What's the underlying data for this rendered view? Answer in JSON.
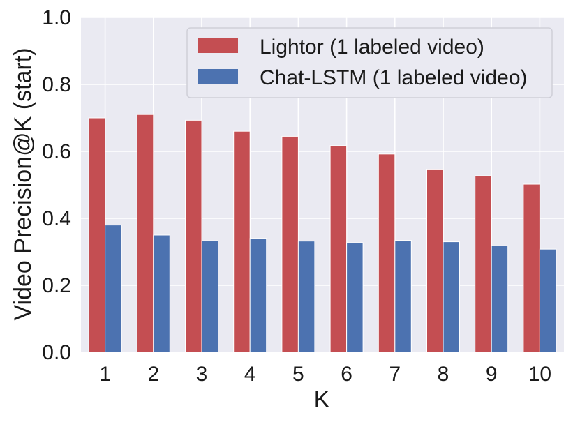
{
  "chart_data": {
    "type": "bar",
    "title": "",
    "xlabel": "K",
    "ylabel": "Video Precision@K (start)",
    "categories": [
      "1",
      "2",
      "3",
      "4",
      "5",
      "6",
      "7",
      "8",
      "9",
      "10"
    ],
    "ylim": [
      0.0,
      1.0
    ],
    "yticks": [
      "0.0",
      "0.2",
      "0.4",
      "0.6",
      "0.8",
      "1.0"
    ],
    "grid": true,
    "legend_position": "top-right",
    "series": [
      {
        "name": "Lightor (1 labeled video)",
        "color": "#c44e52",
        "values": [
          0.7,
          0.71,
          0.693,
          0.66,
          0.645,
          0.617,
          0.592,
          0.545,
          0.527,
          0.502
        ]
      },
      {
        "name": "Chat-LSTM (1 labeled video)",
        "color": "#4c72b0",
        "values": [
          0.38,
          0.35,
          0.333,
          0.34,
          0.332,
          0.327,
          0.334,
          0.33,
          0.318,
          0.308
        ]
      }
    ],
    "plot_background": "#eaeaf2",
    "grid_color": "#ffffff"
  }
}
